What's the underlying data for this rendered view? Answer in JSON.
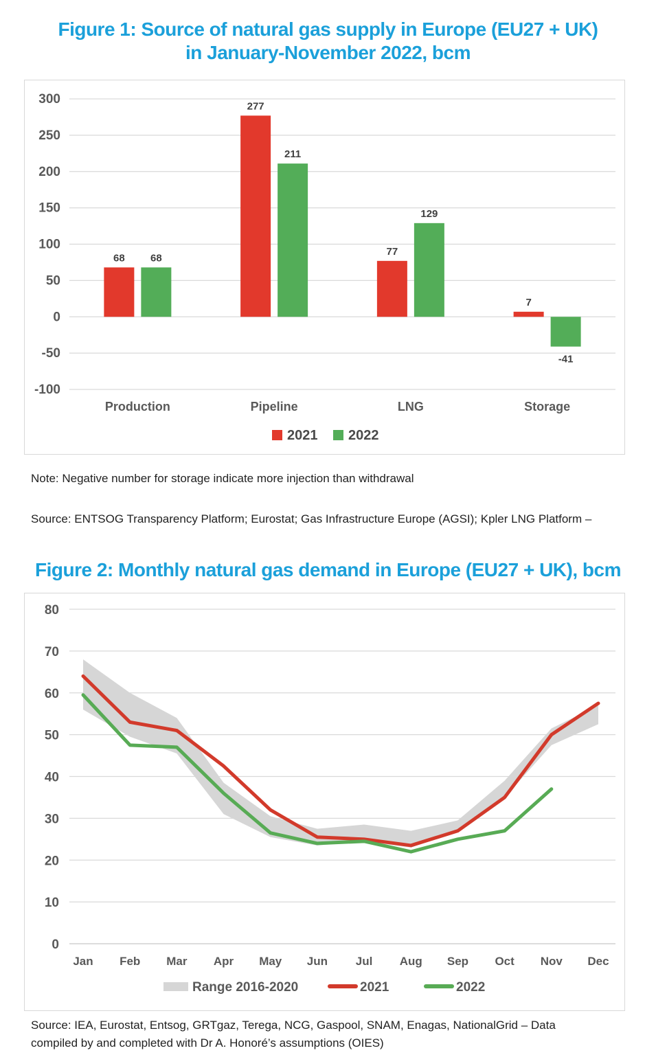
{
  "figure1": {
    "title_line1": "Figure 1: Source of natural gas supply in Europe (EU27 + UK)",
    "title_line2": "in January-November 2022, bcm",
    "note": "Note: Negative number for storage indicate more injection than withdrawal",
    "source": "Source: ENTSOG Transparency Platform; Eurostat; Gas Infrastructure Europe (AGSI); Kpler LNG Platform –"
  },
  "figure2": {
    "title": "Figure 2: Monthly natural gas demand in Europe (EU27 + UK), bcm",
    "source": "Source: IEA, Eurostat, Entsog, GRTgaz, Terega, NCG, Gaspool, SNAM, Enagas, NationalGrid – Data compiled by and completed with Dr A. Honoré’s assumptions (OIES)"
  },
  "colors": {
    "title_blue": "#1ba0da",
    "red_2021": "#e2392c",
    "green_2022": "#53ad58",
    "line_red_2021": "#d23a2b",
    "line_green_2022": "#58ab55",
    "range_band_gray": "#d6d6d6",
    "axis_text_gray": "#595959",
    "gridline_gray": "#d9d9d9"
  },
  "chart_data": [
    {
      "type": "bar",
      "title": "",
      "categories": [
        "Production",
        "Pipeline",
        "LNG",
        "Storage"
      ],
      "series": [
        {
          "name": "2021",
          "color": "#e2392c",
          "values": [
            68,
            277,
            77,
            7
          ]
        },
        {
          "name": "2022",
          "color": "#53ad58",
          "values": [
            68,
            211,
            129,
            -41
          ]
        }
      ],
      "xlabel": "",
      "ylabel": "",
      "ylim": [
        -100,
        300
      ],
      "yticks": [
        300,
        250,
        200,
        150,
        100,
        50,
        0,
        -50,
        -100
      ],
      "grid": true,
      "value_labels": true,
      "legend_position": "bottom"
    },
    {
      "type": "line",
      "title": "",
      "x": [
        "Jan",
        "Feb",
        "Mar",
        "Apr",
        "May",
        "Jun",
        "Jul",
        "Aug",
        "Sep",
        "Oct",
        "Nov",
        "Dec"
      ],
      "band": {
        "name": "Range 2016-2020",
        "color": "#d6d6d6",
        "lower": [
          56,
          49.5,
          45.5,
          31,
          25.5,
          23.5,
          24.5,
          23,
          27,
          35,
          47.5,
          52.5
        ],
        "upper": [
          68,
          60,
          54,
          38.5,
          30.5,
          27.5,
          28.5,
          27,
          29.5,
          39,
          51.5,
          57
        ]
      },
      "series": [
        {
          "name": "2021",
          "color": "#d23a2b",
          "values": [
            64,
            53,
            51,
            42.5,
            32,
            25.5,
            25,
            23.5,
            27,
            35,
            50,
            57.5
          ]
        },
        {
          "name": "2022",
          "color": "#58ab55",
          "values": [
            59.5,
            47.5,
            47,
            36,
            26.5,
            24,
            24.5,
            22,
            25,
            27,
            37,
            null
          ]
        }
      ],
      "xlabel": "",
      "ylabel": "",
      "ylim": [
        0,
        80
      ],
      "yticks": [
        80,
        70,
        60,
        50,
        40,
        30,
        20,
        10,
        0
      ],
      "grid": true,
      "legend_position": "bottom"
    }
  ]
}
